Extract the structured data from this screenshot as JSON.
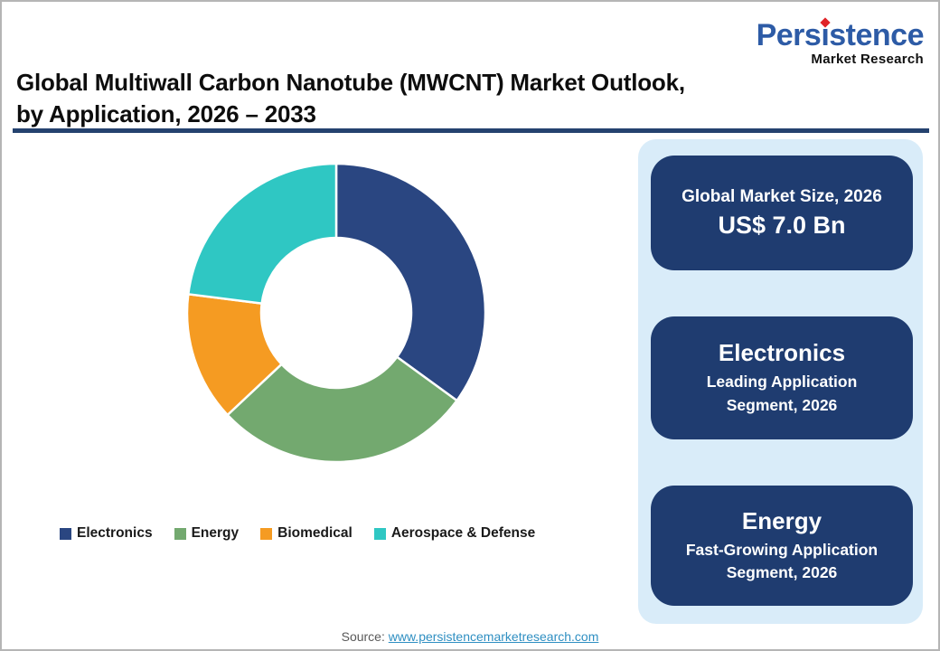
{
  "logo": {
    "brand_full": "Persistence",
    "brand_pre": "Pers",
    "brand_i": "ı",
    "brand_post": "stence",
    "tagline": "Market Research"
  },
  "header": {
    "title_line1": "Global Multiwall Carbon Nanotube (MWCNT) Market Outlook,",
    "title_line2": "by Application, 2026 – 2033"
  },
  "chart_data": {
    "type": "pie",
    "subtype": "donut",
    "title": "Global Multiwall Carbon Nanotube (MWCNT) Market Outlook, by Application, 2026 – 2033",
    "categories": [
      "Electronics",
      "Energy",
      "Biomedical",
      "Aerospace & Defense"
    ],
    "values": [
      35,
      28,
      14,
      23
    ],
    "values_note": "percent share estimated from arc angles; no numeric labels shown in chart",
    "colors": [
      "#2a4681",
      "#73a96f",
      "#f59b22",
      "#2fc7c3"
    ],
    "start_angle_deg": 0,
    "direction": "clockwise",
    "inner_radius_ratio": 0.5,
    "legend_position": "bottom",
    "data_labels": false
  },
  "panel": {
    "cards": [
      {
        "line1": "Global Market Size, 2026",
        "line2": "US$ 7.0 Bn"
      },
      {
        "title": "Electronics",
        "subtitle": "Leading Application Segment, 2026"
      },
      {
        "title": "Energy",
        "subtitle": "Fast-Growing Application Segment, 2026"
      }
    ]
  },
  "source": {
    "prefix": "Source:",
    "link_text": "www.persistencemarketresearch.com"
  },
  "colors": {
    "logo_blue": "#2d5ba6",
    "logo_dot_red": "#e02328",
    "title_underline_navy": "#25426f",
    "panel_bg": "#d9ecf9",
    "card_navy": "#1f3c70",
    "link_blue": "#2f8fc2",
    "canvas_border_gray": "#b5b5b5"
  }
}
